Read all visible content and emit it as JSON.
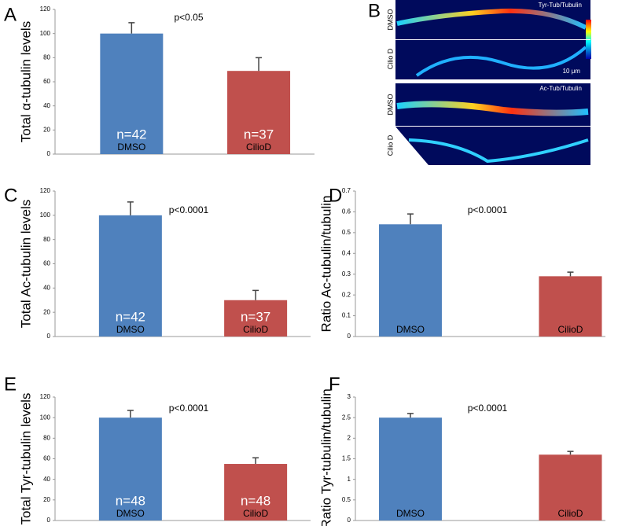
{
  "chart_data": [
    {
      "type": "bar",
      "panel_label": "A",
      "ylabel": "Total α-tubulin levels",
      "annotation": "p<0.05",
      "categories": [
        "DMSO",
        "CilioD"
      ],
      "values": [
        100,
        69
      ],
      "errors": [
        9,
        11
      ],
      "n_labels": [
        "n=42",
        "n=37"
      ],
      "colors": [
        "#4f81bd",
        "#c0504d"
      ],
      "ylim": [
        0,
        120
      ],
      "yticks": [
        0,
        20,
        40,
        60,
        80,
        100,
        120
      ]
    },
    {
      "type": "bar",
      "panel_label": "C",
      "ylabel": "Total Ac-tubulin levels",
      "annotation": "p<0.0001",
      "categories": [
        "DMSO",
        "CilioD"
      ],
      "values": [
        100,
        30
      ],
      "errors": [
        11,
        8
      ],
      "n_labels": [
        "n=42",
        "n=37"
      ],
      "colors": [
        "#4f81bd",
        "#c0504d"
      ],
      "ylim": [
        0,
        120
      ],
      "yticks": [
        0,
        20,
        40,
        60,
        80,
        100,
        120
      ]
    },
    {
      "type": "bar",
      "panel_label": "D",
      "ylabel": "Ratio Ac-tubulin/tubulin",
      "annotation": "p<0.0001",
      "categories": [
        "DMSO",
        "CilioD"
      ],
      "values": [
        0.54,
        0.29
      ],
      "errors": [
        0.05,
        0.02
      ],
      "colors": [
        "#4f81bd",
        "#c0504d"
      ],
      "ylim": [
        0,
        0.7
      ],
      "yticks": [
        0,
        0.1,
        0.2,
        0.3,
        0.4,
        0.5,
        0.6,
        0.7
      ]
    },
    {
      "type": "bar",
      "panel_label": "E",
      "ylabel": "Total Tyr-tubulin levels",
      "annotation": "p<0.0001",
      "categories": [
        "DMSO",
        "CilioD"
      ],
      "values": [
        100,
        55
      ],
      "errors": [
        7,
        6
      ],
      "n_labels": [
        "n=48",
        "n=48"
      ],
      "colors": [
        "#4f81bd",
        "#c0504d"
      ],
      "ylim": [
        0,
        120
      ],
      "yticks": [
        0,
        20,
        40,
        60,
        80,
        100,
        120
      ]
    },
    {
      "type": "bar",
      "panel_label": "F",
      "ylabel": "Ratio Tyr-tubulin/tubulin",
      "annotation": "p<0.0001",
      "categories": [
        "DMSO",
        "CilioD"
      ],
      "values": [
        2.5,
        1.6
      ],
      "errors": [
        0.1,
        0.08
      ],
      "colors": [
        "#4f81bd",
        "#c0504d"
      ],
      "ylim": [
        0,
        3
      ],
      "yticks": [
        0,
        0.5,
        1,
        1.5,
        2,
        2.5,
        3
      ]
    }
  ],
  "image_panel": {
    "panel_label": "B",
    "top_title": "Tyr-Tub/Tubulin",
    "bottom_title": "Ac-Tub/Tubulin",
    "row_labels": [
      "DMSO",
      "Cilio D",
      "DMSO",
      "Cilio D"
    ],
    "scale_bar": "10 μm"
  }
}
